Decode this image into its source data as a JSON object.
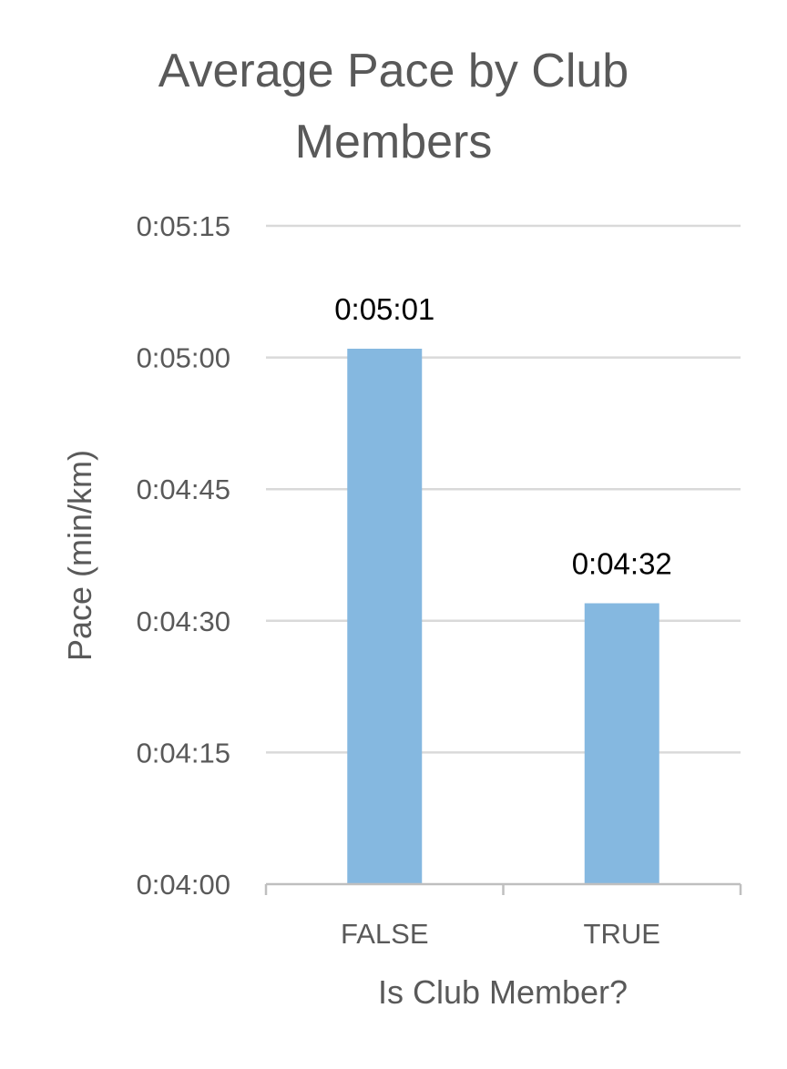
{
  "chart_data": {
    "type": "bar",
    "title": "Average Pace by Club Members",
    "title_lines": [
      "Average Pace by Club",
      "Members"
    ],
    "xlabel": "Is Club Member?",
    "ylabel": "Pace (min/km)",
    "categories": [
      "FALSE",
      "TRUE"
    ],
    "values_seconds": [
      301,
      272
    ],
    "data_labels": [
      "0:05:01",
      "0:04:32"
    ],
    "ylim_seconds": [
      240,
      315
    ],
    "y_ticks_seconds": [
      240,
      255,
      270,
      285,
      300,
      315
    ],
    "y_tick_labels": [
      "0:04:00",
      "0:04:15",
      "0:04:30",
      "0:04:45",
      "0:05:00",
      "0:05:15"
    ],
    "grid": true,
    "legend": "none",
    "colors": {
      "bar": "#85B8E0",
      "grid": "#D9D9D9",
      "axis": "#BFBFBF",
      "text": "#595959",
      "data_label": "#000000"
    }
  }
}
